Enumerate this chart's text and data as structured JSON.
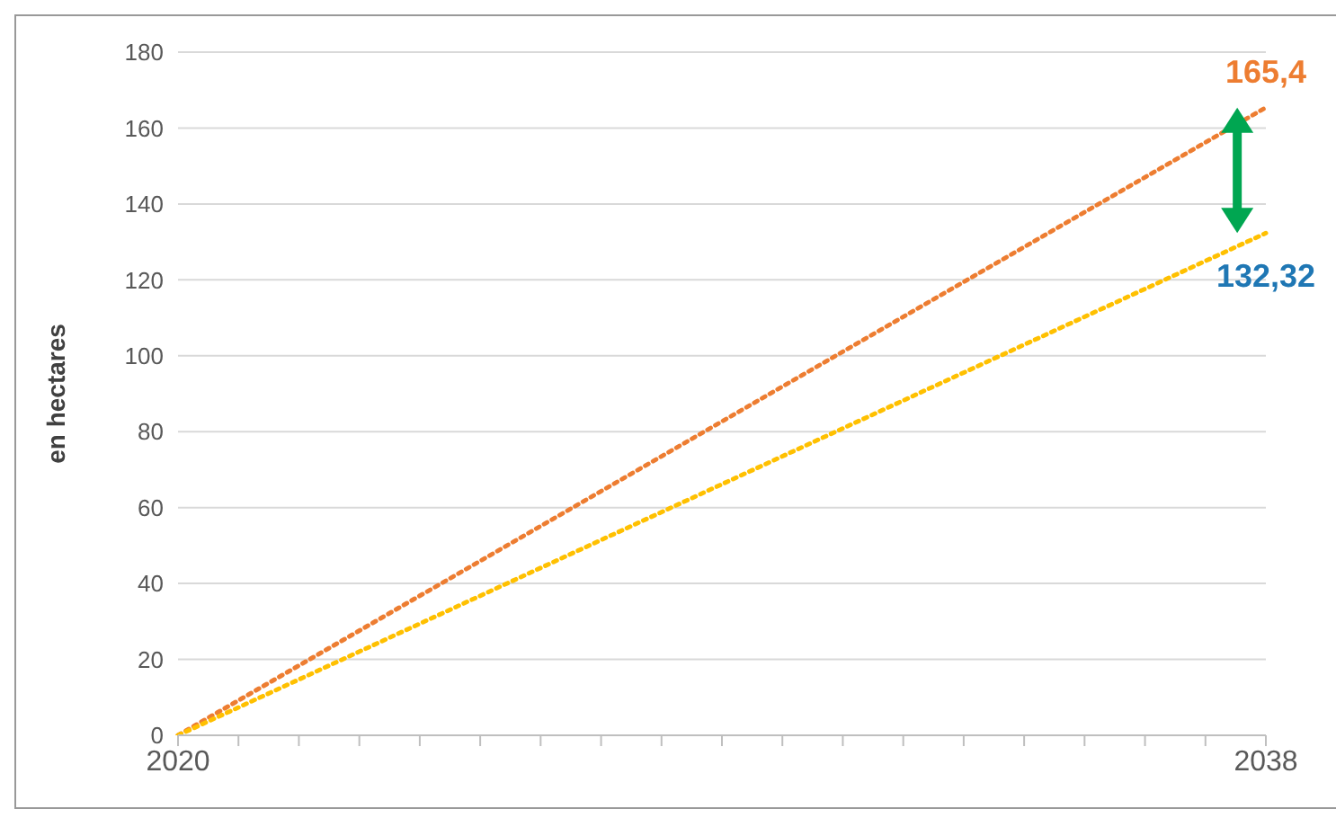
{
  "chart_data": {
    "type": "line",
    "ylabel": "en hectares",
    "categories": [
      "2020",
      null,
      null,
      null,
      null,
      null,
      null,
      null,
      null,
      null,
      null,
      null,
      null,
      null,
      null,
      null,
      null,
      null,
      "2038"
    ],
    "series": [
      {
        "color": "#ed7d31",
        "values": [
          0,
          null,
          null,
          null,
          null,
          null,
          null,
          null,
          null,
          null,
          null,
          null,
          null,
          null,
          null,
          null,
          null,
          null,
          165.4
        ],
        "value_labels": [
          null,
          null,
          null,
          null,
          null,
          null,
          null,
          null,
          null,
          null,
          null,
          null,
          null,
          null,
          null,
          null,
          null,
          null,
          "165,4"
        ]
      },
      {
        "color": "#ffc000",
        "values": [
          0,
          null,
          null,
          null,
          null,
          null,
          null,
          null,
          null,
          null,
          null,
          null,
          null,
          null,
          null,
          null,
          null,
          null,
          132.32
        ],
        "value_labels": [
          null,
          null,
          null,
          null,
          null,
          null,
          null,
          null,
          null,
          null,
          null,
          null,
          null,
          null,
          null,
          null,
          null,
          null,
          "132,32"
        ]
      }
    ],
    "ylim": [
      0,
      180
    ],
    "yticks": [
      0,
      20,
      40,
      60,
      80,
      100,
      120,
      140,
      160,
      180
    ],
    "grid": "y",
    "marker": "none",
    "line_style": "dotted"
  }
}
